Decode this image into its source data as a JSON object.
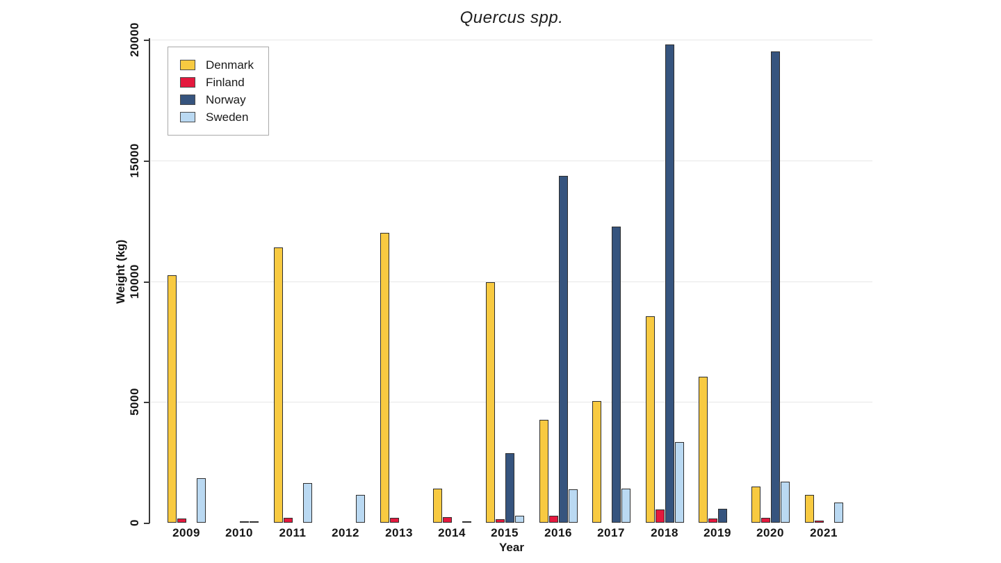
{
  "chart_data": {
    "type": "bar",
    "title": "Quercus spp.",
    "xlabel": "Year",
    "ylabel": "Weight (kg)",
    "ylim": [
      0,
      20000
    ],
    "yticks": [
      0,
      5000,
      10000,
      15000,
      20000
    ],
    "ytick_labels": [
      "0",
      "5000",
      "10000",
      "15000",
      "20000"
    ],
    "grid": "horizontal",
    "legend_position": "upper-left",
    "bar_edge_color": "#2e2e2e",
    "categories": [
      "2009",
      "2010",
      "2011",
      "2012",
      "2013",
      "2014",
      "2015",
      "2016",
      "2017",
      "2018",
      "2019",
      "2020",
      "2021"
    ],
    "series": [
      {
        "name": "Denmark",
        "color": "#F8CA41",
        "values": [
          10250,
          0,
          11400,
          0,
          12000,
          1400,
          9950,
          4250,
          5050,
          8550,
          6050,
          1500,
          1150
        ]
      },
      {
        "name": "Finland",
        "color": "#E4193E",
        "values": [
          160,
          0,
          200,
          0,
          210,
          220,
          140,
          280,
          0,
          540,
          170,
          190,
          100
        ]
      },
      {
        "name": "Norway",
        "color": "#36547E",
        "values": [
          0,
          60,
          0,
          0,
          0,
          0,
          2880,
          14350,
          12250,
          19800,
          580,
          19500,
          0
        ]
      },
      {
        "name": "Sweden",
        "color": "#BAD9F2",
        "values": [
          1850,
          60,
          1650,
          1160,
          0,
          40,
          290,
          1370,
          1420,
          3330,
          0,
          1710,
          840
        ]
      }
    ]
  }
}
